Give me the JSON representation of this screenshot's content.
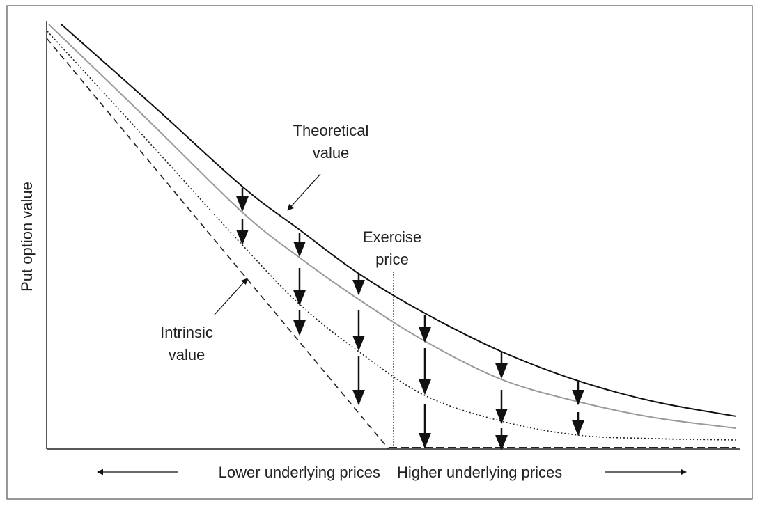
{
  "labels": {
    "theoretical": [
      "Theoretical",
      "value"
    ],
    "exercise": [
      "Exercise",
      "price"
    ],
    "intrinsic": [
      "Intrinsic",
      "value"
    ],
    "y_axis": "Put option value",
    "x_left": "Lower underlying prices",
    "x_right": "Higher underlying prices"
  }
}
